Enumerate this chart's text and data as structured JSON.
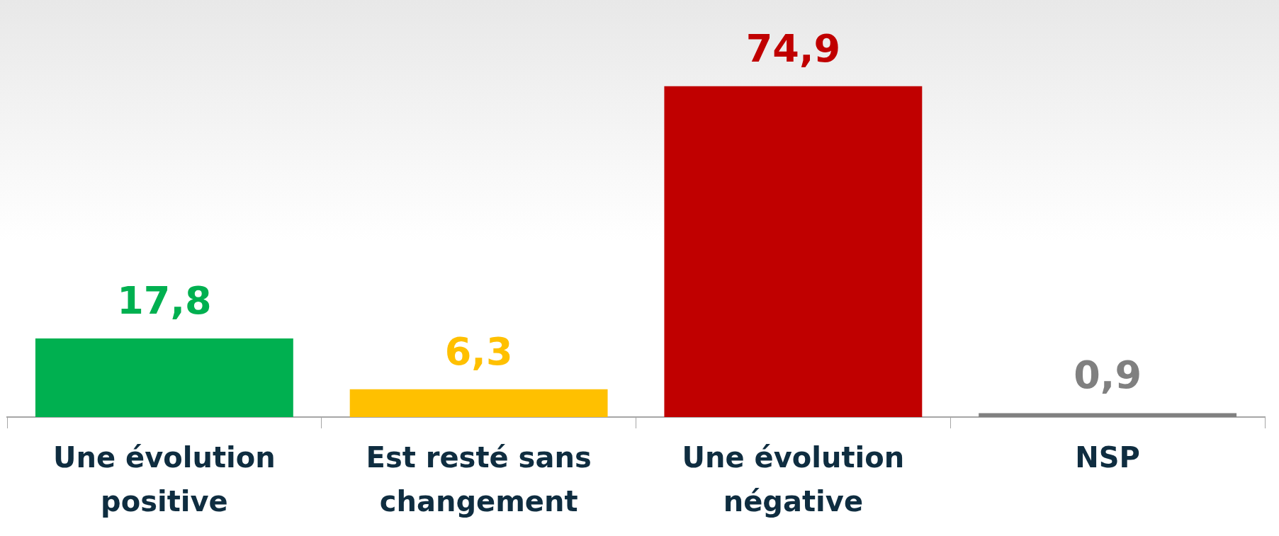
{
  "chart_data": {
    "type": "bar",
    "categories": [
      "Une évolution positive",
      "Est resté sans changement",
      "Une évolution négative",
      "NSP"
    ],
    "values": [
      17.8,
      6.3,
      74.9,
      0.9
    ],
    "colors": [
      "#00b050",
      "#ffc000",
      "#c00000",
      "#808080"
    ],
    "value_labels": [
      "17,8",
      "6,3",
      "74,9",
      "0,9"
    ],
    "grid": false,
    "legend": false
  }
}
